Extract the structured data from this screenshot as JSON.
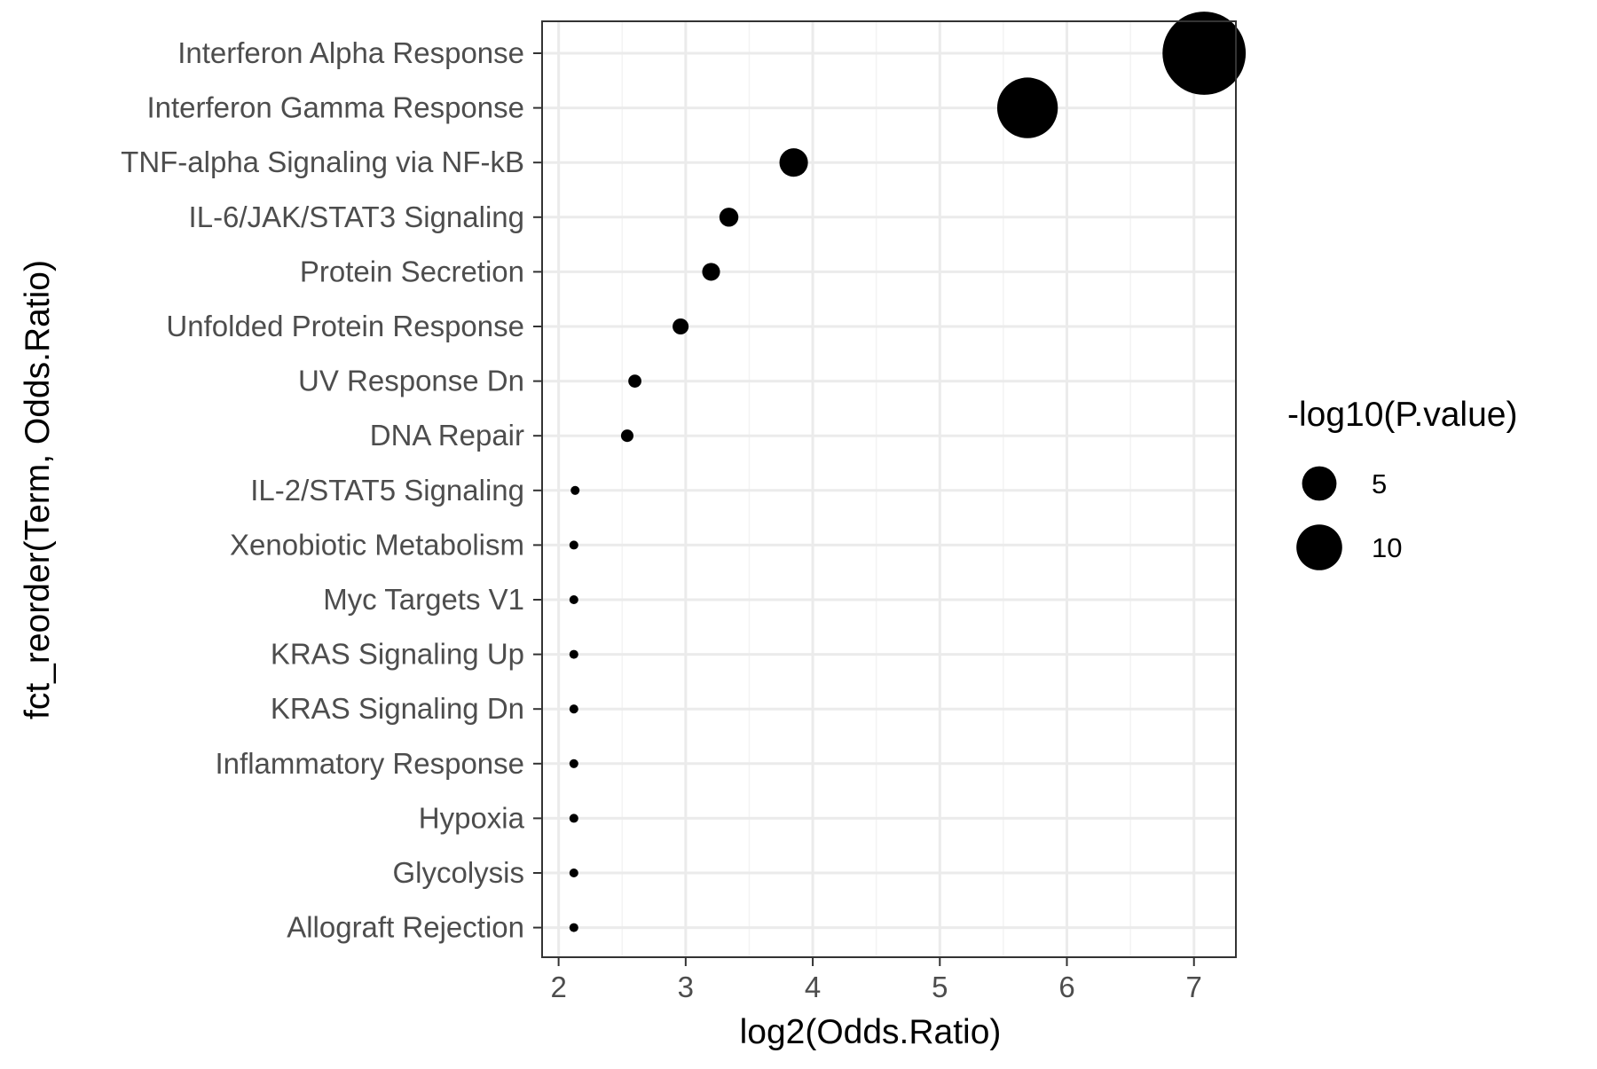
{
  "colors": {
    "point": "#000000",
    "grid_major": "#ebebeb",
    "grid_minor": "#f3f3f3",
    "panel_border": "#333333",
    "tick_text": "#4d4d4d"
  },
  "chart_data": {
    "type": "scatter",
    "title": "",
    "xlabel": "log2(Odds.Ratio)",
    "ylabel": "fct_reorder(Term, Odds.Ratio)",
    "xlim": [
      1.87,
      7.33
    ],
    "x_ticks": [
      2,
      3,
      4,
      5,
      6,
      7
    ],
    "x_tick_labels": [
      "2",
      "3",
      "4",
      "5",
      "6",
      "7"
    ],
    "grid": true,
    "legend_position": "right",
    "legend": {
      "title": "-log10(P.value)",
      "entries": [
        {
          "label": "5",
          "value": 5
        },
        {
          "label": "10",
          "value": 10
        }
      ]
    },
    "categories": [
      "Interferon Alpha Response",
      "Interferon Gamma Response",
      "TNF-alpha Signaling via NF-kB",
      "IL-6/JAK/STAT3 Signaling",
      "Protein Secretion",
      "Unfolded Protein Response",
      "UV Response Dn",
      "DNA Repair",
      "IL-2/STAT5 Signaling",
      "Xenobiotic Metabolism",
      "Myc Targets V1",
      "KRAS Signaling Up",
      "KRAS Signaling Dn",
      "Inflammatory Response",
      "Hypoxia",
      "Glycolysis",
      "Allograft Rejection"
    ],
    "series": [
      {
        "x": [
          7.08,
          5.69,
          3.85,
          3.34,
          3.2,
          2.96,
          2.6,
          2.54,
          2.13,
          2.12,
          2.12,
          2.12,
          2.12,
          2.12,
          2.12,
          2.12,
          2.12
        ],
        "size": [
          14.0,
          10.2,
          4.8,
          3.2,
          3.0,
          2.7,
          2.2,
          2.1,
          1.5,
          1.5,
          1.5,
          1.5,
          1.5,
          1.5,
          1.5,
          1.5,
          1.5
        ]
      }
    ]
  }
}
